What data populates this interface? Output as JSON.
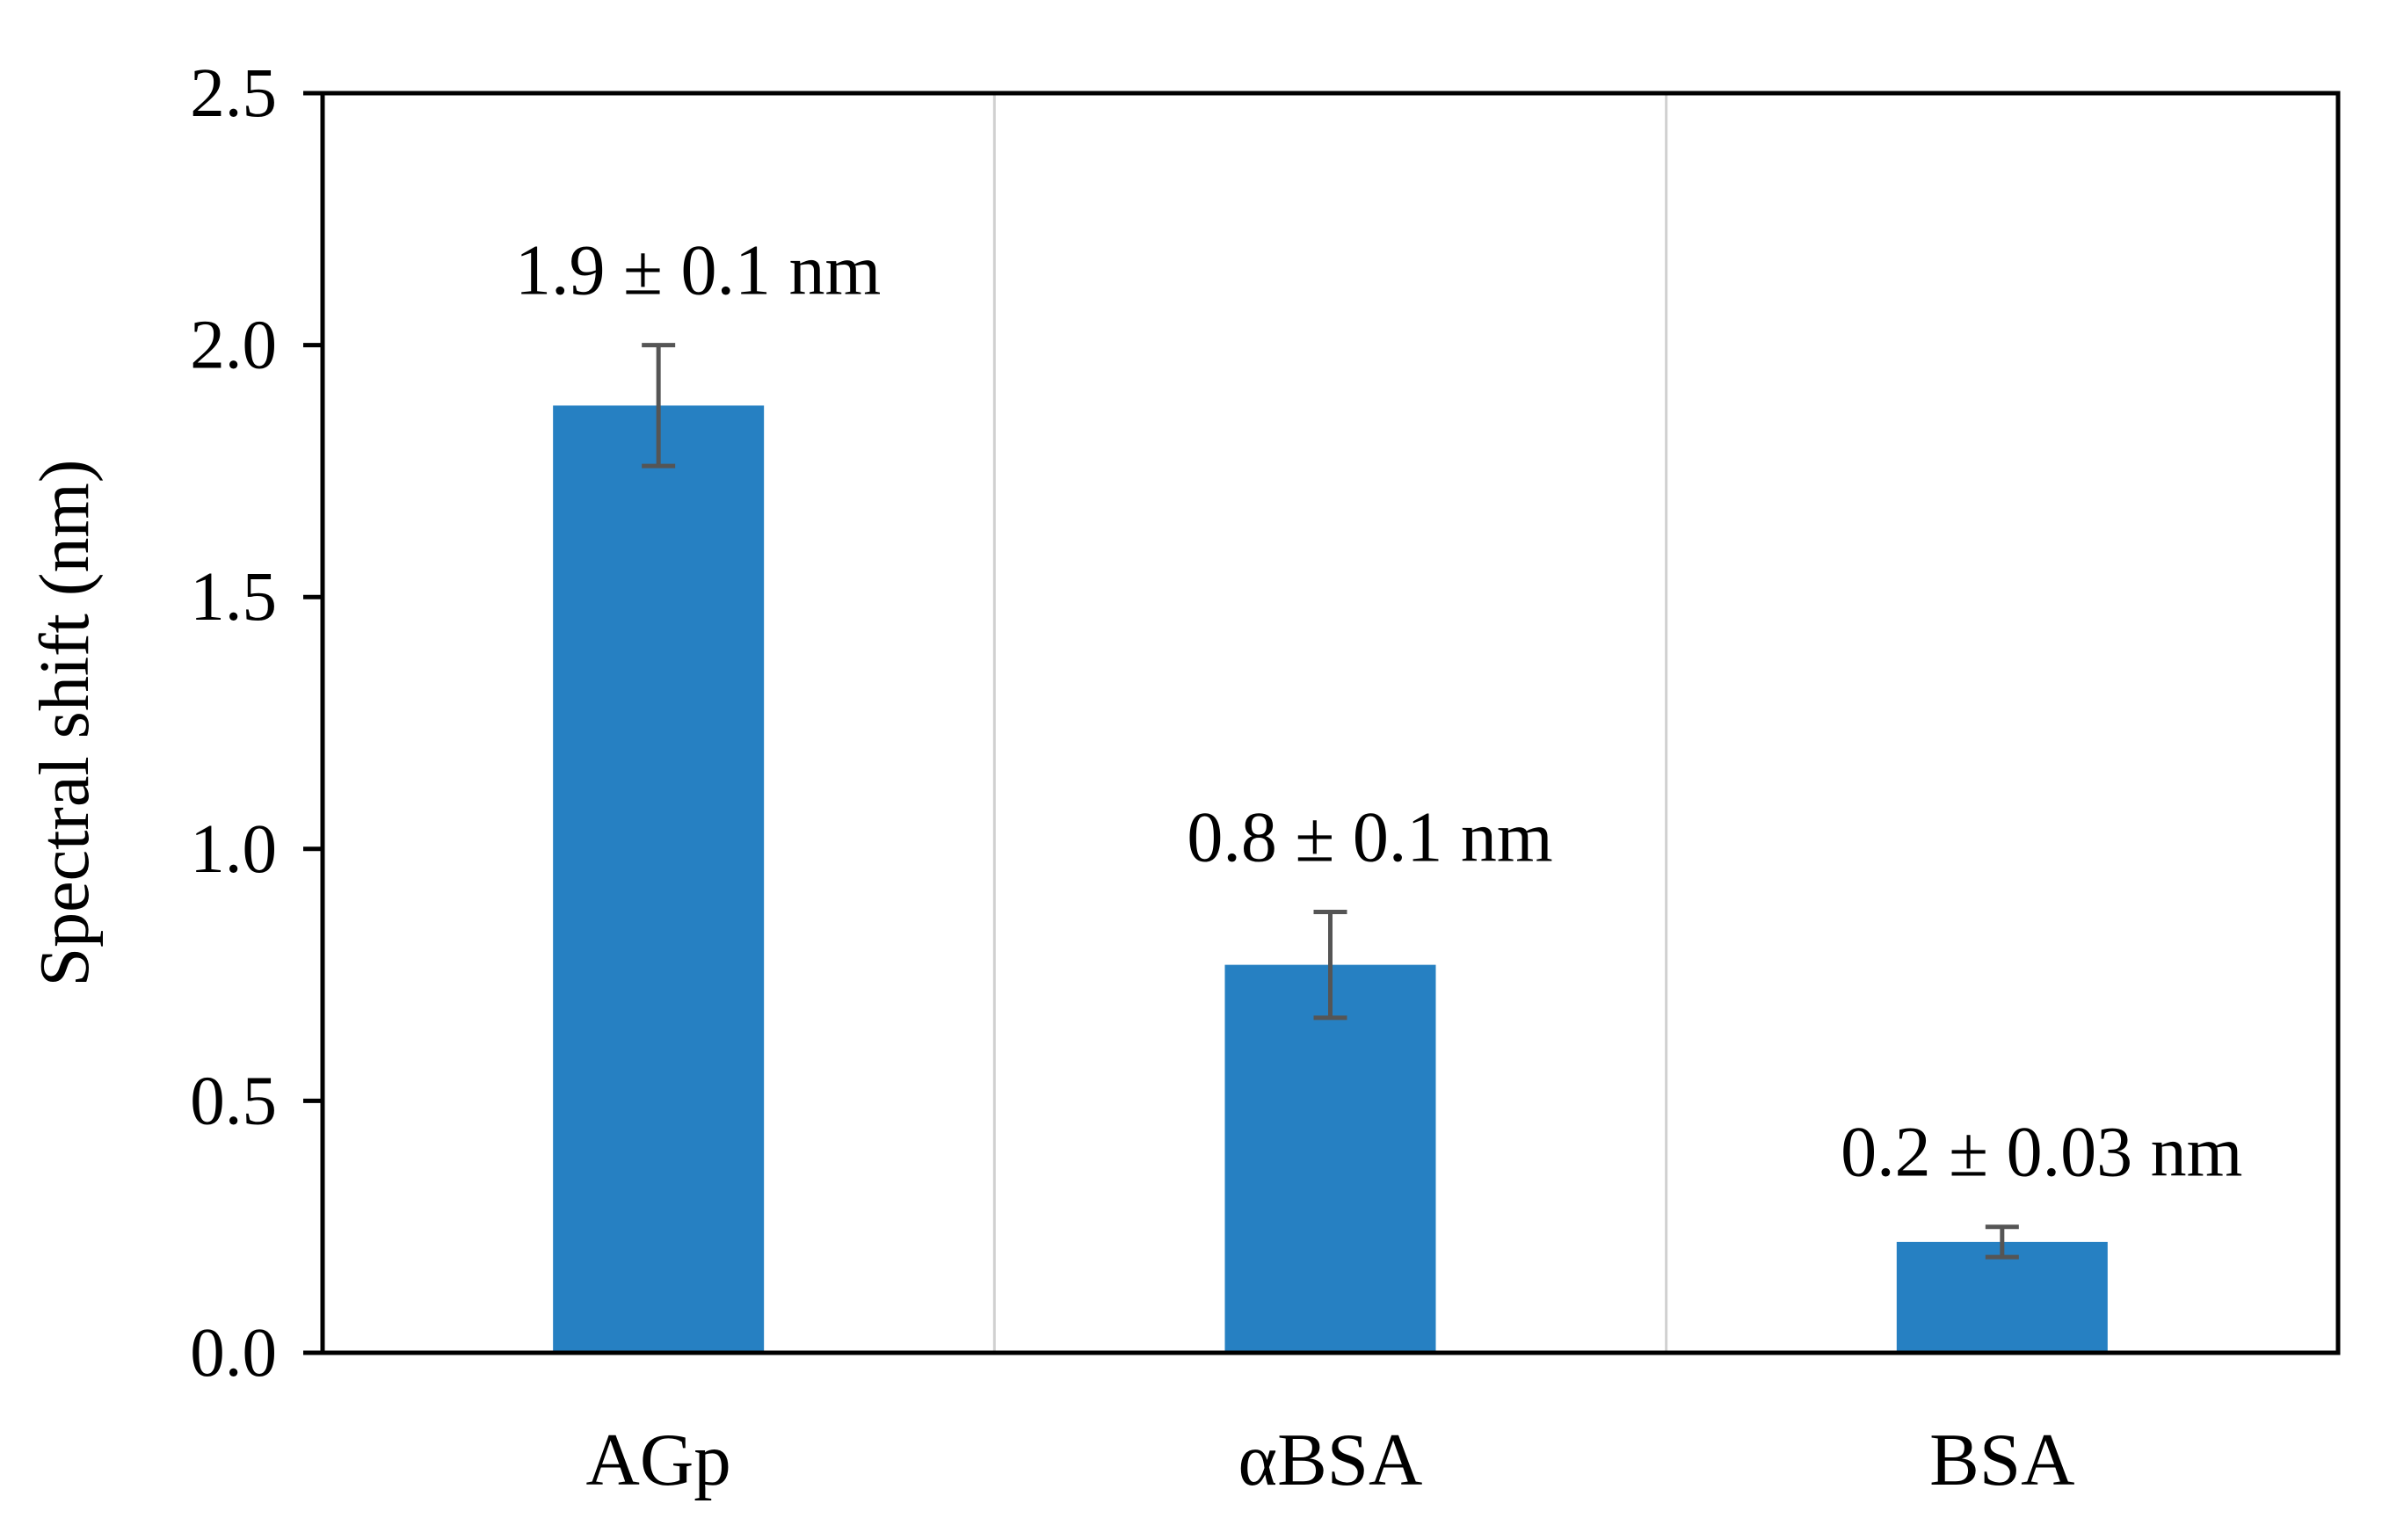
{
  "chart_data": {
    "type": "bar",
    "categories": [
      "AGp",
      "αBSA",
      "BSA"
    ],
    "values": [
      1.88,
      0.77,
      0.22
    ],
    "errors": [
      0.12,
      0.105,
      0.03
    ],
    "data_labels": [
      "1.9 ± 0.1 nm",
      "0.8 ± 0.1 nm",
      "0.2 ± 0.03 nm"
    ],
    "title": "",
    "xlabel": "",
    "ylabel": "Spectral shift (nm)",
    "ylim": [
      0,
      2.5
    ],
    "yticks": [
      "0.0",
      "0.5",
      "1.0",
      "1.5",
      "2.0",
      "2.5"
    ],
    "grid": "vertical separators between categories",
    "colors": {
      "bar": "#2680C2",
      "error_bar": "#555555",
      "separator": "#D0D0D0",
      "axis": "#000000"
    }
  }
}
